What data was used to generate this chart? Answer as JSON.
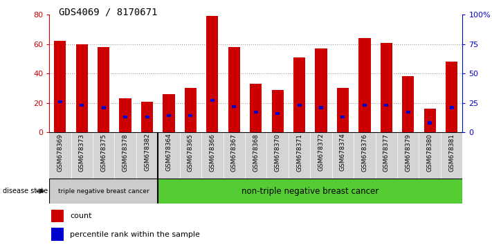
{
  "title": "GDS4069 / 8170671",
  "samples": [
    "GSM678369",
    "GSM678373",
    "GSM678375",
    "GSM678378",
    "GSM678382",
    "GSM678364",
    "GSM678365",
    "GSM678366",
    "GSM678367",
    "GSM678368",
    "GSM678370",
    "GSM678371",
    "GSM678372",
    "GSM678374",
    "GSM678376",
    "GSM678377",
    "GSM678379",
    "GSM678380",
    "GSM678381"
  ],
  "counts": [
    62,
    60,
    58,
    23,
    21,
    26,
    30,
    79,
    58,
    33,
    29,
    51,
    57,
    30,
    64,
    61,
    38,
    16,
    48
  ],
  "percentiles": [
    26,
    23,
    21,
    13,
    13,
    14,
    14,
    27,
    22,
    17,
    16,
    23,
    21,
    13,
    23,
    23,
    17,
    8,
    21
  ],
  "ylim_left": [
    0,
    80
  ],
  "ylim_right": [
    0,
    100
  ],
  "yticks_left": [
    0,
    20,
    40,
    60,
    80
  ],
  "yticks_right": [
    0,
    25,
    50,
    75,
    100
  ],
  "ytick_labels_right": [
    "0",
    "25",
    "50",
    "75",
    "100%"
  ],
  "bar_color": "#cc0000",
  "percentile_color": "#0000cc",
  "triple_neg_count": 5,
  "group1_label": "triple negative breast cancer",
  "group2_label": "non-triple negative breast cancer",
  "group1_bg": "#cccccc",
  "group2_bg": "#55cc33",
  "legend_count_label": "count",
  "legend_pct_label": "percentile rank within the sample",
  "disease_state_label": "disease state",
  "left_axis_color": "#cc0000",
  "right_axis_color": "#0000cc",
  "bar_width": 0.55
}
